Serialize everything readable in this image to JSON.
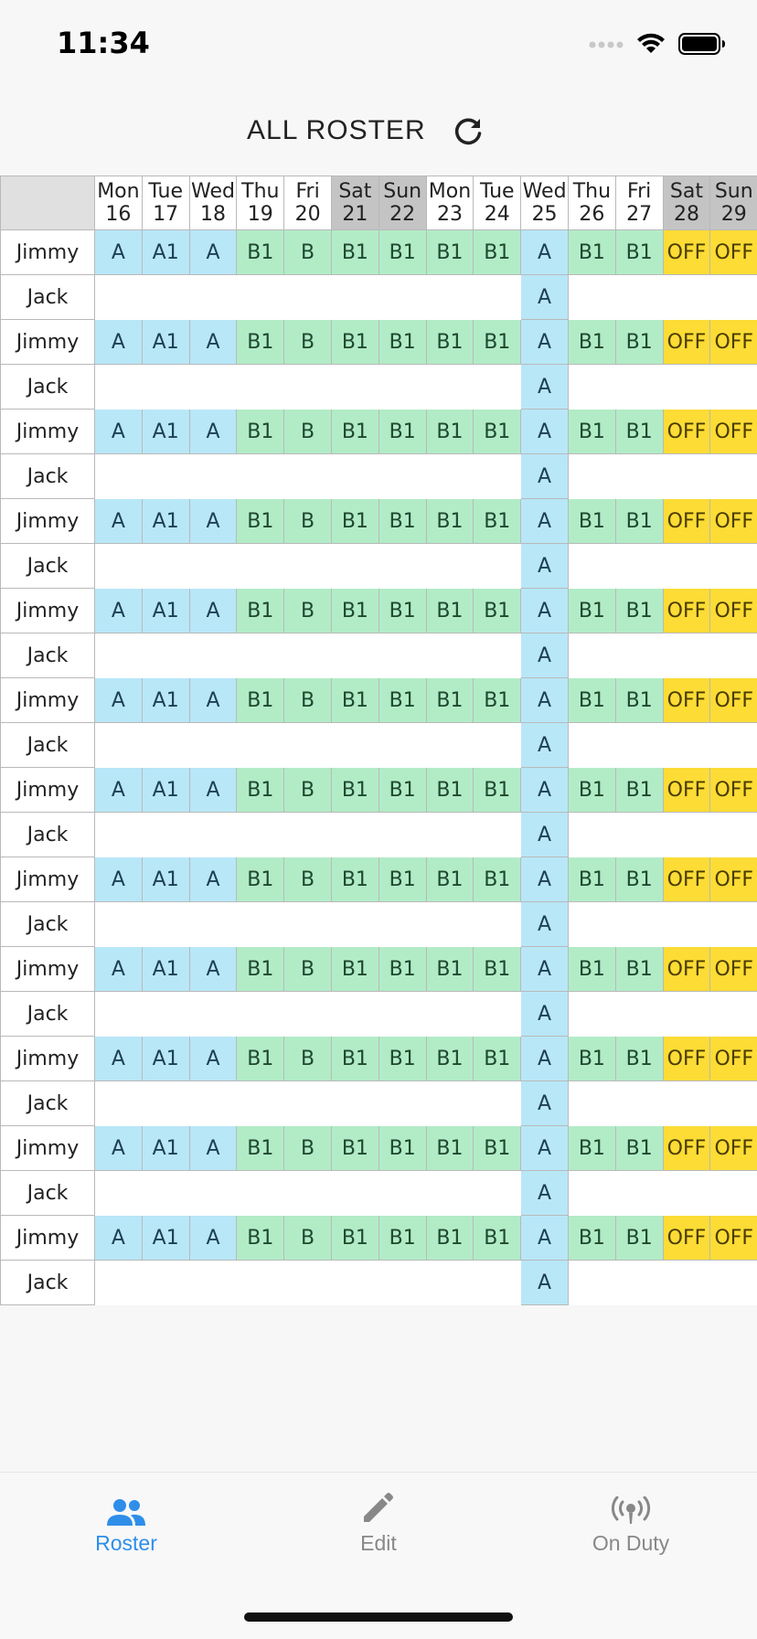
{
  "status_bar": {
    "time": "11:34",
    "icons": [
      "signal-dots-icon",
      "wifi-icon",
      "battery-icon"
    ]
  },
  "header": {
    "title": "ALL ROSTER",
    "refresh_icon": "refresh-icon"
  },
  "roster": {
    "days": [
      {
        "dow": "Mon",
        "date": "16",
        "weekend": false
      },
      {
        "dow": "Tue",
        "date": "17",
        "weekend": false
      },
      {
        "dow": "Wed",
        "date": "18",
        "weekend": false
      },
      {
        "dow": "Thu",
        "date": "19",
        "weekend": false
      },
      {
        "dow": "Fri",
        "date": "20",
        "weekend": false
      },
      {
        "dow": "Sat",
        "date": "21",
        "weekend": true
      },
      {
        "dow": "Sun",
        "date": "22",
        "weekend": true
      },
      {
        "dow": "Mon",
        "date": "23",
        "weekend": false
      },
      {
        "dow": "Tue",
        "date": "24",
        "weekend": false
      },
      {
        "dow": "Wed",
        "date": "25",
        "weekend": false
      },
      {
        "dow": "Thu",
        "date": "26",
        "weekend": false
      },
      {
        "dow": "Fri",
        "date": "27",
        "weekend": false
      },
      {
        "dow": "Sat",
        "date": "28",
        "weekend": true
      },
      {
        "dow": "Sun",
        "date": "29",
        "weekend": true
      }
    ],
    "rows": [
      {
        "name": "Jimmy",
        "shifts": [
          "A",
          "A1",
          "A",
          "B1",
          "B",
          "B1",
          "B1",
          "B1",
          "B1",
          "A",
          "B1",
          "B1",
          "OFF",
          "OFF"
        ]
      },
      {
        "name": "Jack",
        "shifts": [
          "",
          "",
          "",
          "",
          "",
          "",
          "",
          "",
          "",
          "A",
          "",
          "",
          "",
          ""
        ]
      },
      {
        "name": "Jimmy",
        "shifts": [
          "A",
          "A1",
          "A",
          "B1",
          "B",
          "B1",
          "B1",
          "B1",
          "B1",
          "A",
          "B1",
          "B1",
          "OFF",
          "OFF"
        ]
      },
      {
        "name": "Jack",
        "shifts": [
          "",
          "",
          "",
          "",
          "",
          "",
          "",
          "",
          "",
          "A",
          "",
          "",
          "",
          ""
        ]
      },
      {
        "name": "Jimmy",
        "shifts": [
          "A",
          "A1",
          "A",
          "B1",
          "B",
          "B1",
          "B1",
          "B1",
          "B1",
          "A",
          "B1",
          "B1",
          "OFF",
          "OFF"
        ]
      },
      {
        "name": "Jack",
        "shifts": [
          "",
          "",
          "",
          "",
          "",
          "",
          "",
          "",
          "",
          "A",
          "",
          "",
          "",
          ""
        ]
      },
      {
        "name": "Jimmy",
        "shifts": [
          "A",
          "A1",
          "A",
          "B1",
          "B",
          "B1",
          "B1",
          "B1",
          "B1",
          "A",
          "B1",
          "B1",
          "OFF",
          "OFF"
        ]
      },
      {
        "name": "Jack",
        "shifts": [
          "",
          "",
          "",
          "",
          "",
          "",
          "",
          "",
          "",
          "A",
          "",
          "",
          "",
          ""
        ]
      },
      {
        "name": "Jimmy",
        "shifts": [
          "A",
          "A1",
          "A",
          "B1",
          "B",
          "B1",
          "B1",
          "B1",
          "B1",
          "A",
          "B1",
          "B1",
          "OFF",
          "OFF"
        ]
      },
      {
        "name": "Jack",
        "shifts": [
          "",
          "",
          "",
          "",
          "",
          "",
          "",
          "",
          "",
          "A",
          "",
          "",
          "",
          ""
        ]
      },
      {
        "name": "Jimmy",
        "shifts": [
          "A",
          "A1",
          "A",
          "B1",
          "B",
          "B1",
          "B1",
          "B1",
          "B1",
          "A",
          "B1",
          "B1",
          "OFF",
          "OFF"
        ]
      },
      {
        "name": "Jack",
        "shifts": [
          "",
          "",
          "",
          "",
          "",
          "",
          "",
          "",
          "",
          "A",
          "",
          "",
          "",
          ""
        ]
      },
      {
        "name": "Jimmy",
        "shifts": [
          "A",
          "A1",
          "A",
          "B1",
          "B",
          "B1",
          "B1",
          "B1",
          "B1",
          "A",
          "B1",
          "B1",
          "OFF",
          "OFF"
        ]
      },
      {
        "name": "Jack",
        "shifts": [
          "",
          "",
          "",
          "",
          "",
          "",
          "",
          "",
          "",
          "A",
          "",
          "",
          "",
          ""
        ]
      },
      {
        "name": "Jimmy",
        "shifts": [
          "A",
          "A1",
          "A",
          "B1",
          "B",
          "B1",
          "B1",
          "B1",
          "B1",
          "A",
          "B1",
          "B1",
          "OFF",
          "OFF"
        ]
      },
      {
        "name": "Jack",
        "shifts": [
          "",
          "",
          "",
          "",
          "",
          "",
          "",
          "",
          "",
          "A",
          "",
          "",
          "",
          ""
        ]
      },
      {
        "name": "Jimmy",
        "shifts": [
          "A",
          "A1",
          "A",
          "B1",
          "B",
          "B1",
          "B1",
          "B1",
          "B1",
          "A",
          "B1",
          "B1",
          "OFF",
          "OFF"
        ]
      },
      {
        "name": "Jack",
        "shifts": [
          "",
          "",
          "",
          "",
          "",
          "",
          "",
          "",
          "",
          "A",
          "",
          "",
          "",
          ""
        ]
      },
      {
        "name": "Jimmy",
        "shifts": [
          "A",
          "A1",
          "A",
          "B1",
          "B",
          "B1",
          "B1",
          "B1",
          "B1",
          "A",
          "B1",
          "B1",
          "OFF",
          "OFF"
        ]
      },
      {
        "name": "Jack",
        "shifts": [
          "",
          "",
          "",
          "",
          "",
          "",
          "",
          "",
          "",
          "A",
          "",
          "",
          "",
          ""
        ]
      },
      {
        "name": "Jimmy",
        "shifts": [
          "A",
          "A1",
          "A",
          "B1",
          "B",
          "B1",
          "B1",
          "B1",
          "B1",
          "A",
          "B1",
          "B1",
          "OFF",
          "OFF"
        ]
      },
      {
        "name": "Jack",
        "shifts": [
          "",
          "",
          "",
          "",
          "",
          "",
          "",
          "",
          "",
          "A",
          "",
          "",
          "",
          ""
        ]
      },
      {
        "name": "Jimmy",
        "shifts": [
          "A",
          "A1",
          "A",
          "B1",
          "B",
          "B1",
          "B1",
          "B1",
          "B1",
          "A",
          "B1",
          "B1",
          "OFF",
          "OFF"
        ]
      },
      {
        "name": "Jack",
        "shifts": [
          "",
          "",
          "",
          "",
          "",
          "",
          "",
          "",
          "",
          "A",
          "",
          "",
          "",
          ""
        ]
      }
    ],
    "colors": {
      "A": "#b8e7f8",
      "B": "#b2ecc7",
      "OFF": "#fcdc35",
      "weekend_header": "#c4c4c4"
    }
  },
  "tab_bar": {
    "tabs": [
      {
        "label": "Roster",
        "icon": "people-icon",
        "active": true
      },
      {
        "label": "Edit",
        "icon": "pencil-icon",
        "active": false
      },
      {
        "label": "On Duty",
        "icon": "broadcast-icon",
        "active": false
      }
    ],
    "active_color": "#2f8ee8",
    "inactive_color": "#888888"
  }
}
